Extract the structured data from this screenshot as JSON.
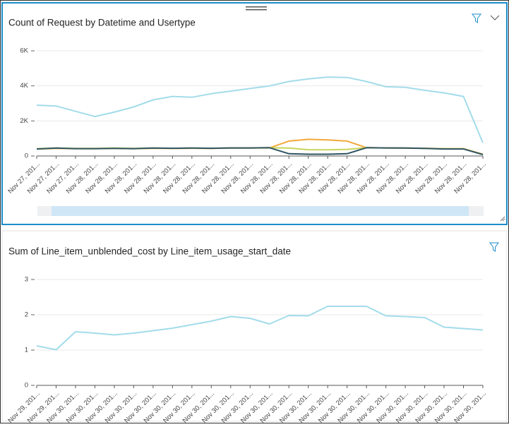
{
  "chart_data": [
    {
      "type": "line",
      "title": "Count of Request by Datetime and Usertype",
      "categories": [
        "Nov 27, 201...",
        "Nov 27, 201...",
        "Nov 27, 201...",
        "Nov 28, 201...",
        "Nov 28, 201...",
        "Nov 28, 201...",
        "Nov 28, 201...",
        "Nov 28, 201...",
        "Nov 28, 201...",
        "Nov 28, 201...",
        "Nov 28, 201...",
        "Nov 28, 201...",
        "Nov 28, 201...",
        "Nov 28, 201...",
        "Nov 28, 201...",
        "Nov 28, 201...",
        "Nov 28, 201...",
        "Nov 28, 201...",
        "Nov 28, 201...",
        "Nov 28, 201...",
        "Nov 28, 201...",
        "Nov 28, 201...",
        "Nov 28, 201...",
        "Nov 28, 201..."
      ],
      "series": [
        {
          "color": "#a3dcea",
          "values": [
            2900,
            2850,
            2550,
            2250,
            2500,
            2800,
            3200,
            3400,
            3350,
            3550,
            3700,
            3850,
            4000,
            4250,
            4400,
            4500,
            4480,
            4250,
            3950,
            3920,
            3750,
            3600,
            3400,
            750
          ]
        },
        {
          "color": "#f2a93b",
          "values": [
            400,
            430,
            420,
            420,
            430,
            420,
            440,
            430,
            440,
            430,
            450,
            450,
            460,
            850,
            950,
            920,
            850,
            470,
            460,
            450,
            440,
            420,
            420,
            100
          ]
        },
        {
          "color": "#c9d45c",
          "values": [
            420,
            450,
            430,
            430,
            450,
            430,
            450,
            440,
            450,
            440,
            460,
            460,
            470,
            450,
            360,
            350,
            380,
            470,
            460,
            450,
            430,
            410,
            410,
            90
          ]
        },
        {
          "color": "#2f5563",
          "values": [
            400,
            450,
            420,
            420,
            430,
            420,
            450,
            440,
            450,
            440,
            460,
            460,
            470,
            130,
            100,
            100,
            130,
            470,
            460,
            450,
            430,
            400,
            400,
            80
          ]
        }
      ],
      "ylim": [
        0,
        6000
      ],
      "yticks": [
        0,
        {
          "value": 2000,
          "label": "2K"
        },
        {
          "value": 4000,
          "label": "4K"
        },
        {
          "value": 6000,
          "label": "6K"
        }
      ],
      "grid": true
    },
    {
      "type": "line",
      "title": "Sum of Line_item_unblended_cost by Line_item_usage_start_date",
      "categories": [
        "Nov 29, 201...",
        "Nov 29, 201...",
        "Nov 30, 201...",
        "Nov 30, 201...",
        "Nov 30, 201...",
        "Nov 30, 201...",
        "Nov 30, 201...",
        "Nov 30, 201...",
        "Nov 30, 201...",
        "Nov 30, 201...",
        "Nov 30, 201...",
        "Nov 30, 201...",
        "Nov 30, 201...",
        "Nov 30, 201...",
        "Nov 30, 201...",
        "Nov 30, 201...",
        "Nov 30, 201...",
        "Nov 30, 201...",
        "Nov 30, 201...",
        "Nov 30, 201...",
        "Nov 30, 201...",
        "Nov 30, 201...",
        "Nov 30, 201...",
        "Nov 30, 201..."
      ],
      "series": [
        {
          "color": "#a3dcea",
          "values": [
            1.12,
            1.01,
            1.52,
            1.48,
            1.43,
            1.48,
            1.55,
            1.62,
            1.72,
            1.82,
            1.95,
            1.9,
            1.74,
            1.98,
            1.97,
            2.24,
            2.24,
            2.24,
            1.97,
            1.95,
            1.92,
            1.65,
            1.61,
            1.57
          ]
        }
      ],
      "ylim": [
        0,
        3
      ],
      "yticks": [
        0,
        1,
        2,
        3
      ],
      "grid": true
    }
  ]
}
